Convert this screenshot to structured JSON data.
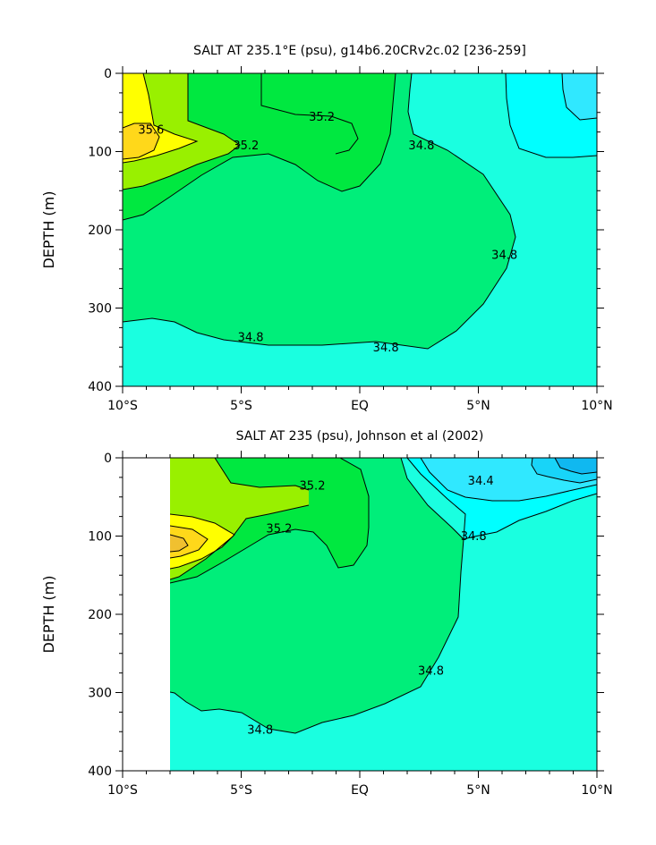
{
  "chart_data": [
    {
      "type": "contour",
      "title": "SALT AT 235.1°E (psu), g14b6.20CRv2c.02 [236-259]",
      "ylabel": "DEPTH (m)",
      "xlabel": "",
      "x_ticks": [
        "10°S",
        "5°S",
        "EQ",
        "5°N",
        "10°N"
      ],
      "x_tick_values": [
        -10,
        -5,
        0,
        5,
        10
      ],
      "xlim": [
        -10,
        10
      ],
      "y_ticks": [
        "0",
        "100",
        "200",
        "300",
        "400"
      ],
      "y_tick_values": [
        0,
        100,
        200,
        300,
        400
      ],
      "ylim": [
        0,
        400
      ],
      "y_inverted": true,
      "contour_labels": [
        {
          "text": "35.6",
          "x": -8.8,
          "depth": 75
        },
        {
          "text": "35.2",
          "x": -1.6,
          "depth": 58
        },
        {
          "text": "35.2",
          "x": -4.8,
          "depth": 95
        },
        {
          "text": "34.8",
          "x": 2.6,
          "depth": 95
        },
        {
          "text": "34.8",
          "x": 6.1,
          "depth": 235
        },
        {
          "text": "34.8",
          "x": -4.6,
          "depth": 340
        },
        {
          "text": "34.8",
          "x": 1.1,
          "depth": 353
        }
      ],
      "salinity_levels": [
        {
          "level": 34.4,
          "color": "#30e8ff"
        },
        {
          "level": 34.6,
          "color": "#00ffff"
        },
        {
          "level": 34.8,
          "color": "#1affe0"
        },
        {
          "level": 35.0,
          "color": "#00ee7a"
        },
        {
          "level": 35.2,
          "color": "#00e840"
        },
        {
          "level": 35.4,
          "color": "#99f000"
        },
        {
          "level": 35.6,
          "color": "#ffff00"
        },
        {
          "level": 35.8,
          "color": "#ffd81a"
        }
      ]
    },
    {
      "type": "contour",
      "title": "SALT AT 235 (psu), Johnson et al (2002)",
      "ylabel": "DEPTH (m)",
      "xlabel": "",
      "x_ticks": [
        "10°S",
        "5°S",
        "EQ",
        "5°N",
        "10°N"
      ],
      "x_tick_values": [
        -10,
        -5,
        0,
        5,
        10
      ],
      "xlim": [
        -10,
        10
      ],
      "y_ticks": [
        "0",
        "100",
        "200",
        "300",
        "400"
      ],
      "y_tick_values": [
        0,
        100,
        200,
        300,
        400
      ],
      "ylim": [
        0,
        400
      ],
      "y_inverted": true,
      "data_start_x": -8,
      "contour_labels": [
        {
          "text": "35.2",
          "x": -2.0,
          "depth": 38
        },
        {
          "text": "35.2",
          "x": -3.4,
          "depth": 93
        },
        {
          "text": "34.4",
          "x": 5.1,
          "depth": 32
        },
        {
          "text": "34.8",
          "x": 4.8,
          "depth": 103
        },
        {
          "text": "34.8",
          "x": 3.0,
          "depth": 275
        },
        {
          "text": "34.8",
          "x": -4.2,
          "depth": 350
        }
      ],
      "salinity_levels": [
        {
          "level": 34.0,
          "color": "#10b8f0"
        },
        {
          "level": 34.2,
          "color": "#18d4f8"
        },
        {
          "level": 34.4,
          "color": "#30e8ff"
        },
        {
          "level": 34.6,
          "color": "#00ffff"
        },
        {
          "level": 34.8,
          "color": "#1affe0"
        },
        {
          "level": 35.0,
          "color": "#00ee7a"
        },
        {
          "level": 35.2,
          "color": "#00e840"
        },
        {
          "level": 35.4,
          "color": "#99f000"
        },
        {
          "level": 35.6,
          "color": "#ffff00"
        },
        {
          "level": 35.8,
          "color": "#ffd81a"
        },
        {
          "level": 36.0,
          "color": "#f0c030"
        }
      ]
    }
  ]
}
